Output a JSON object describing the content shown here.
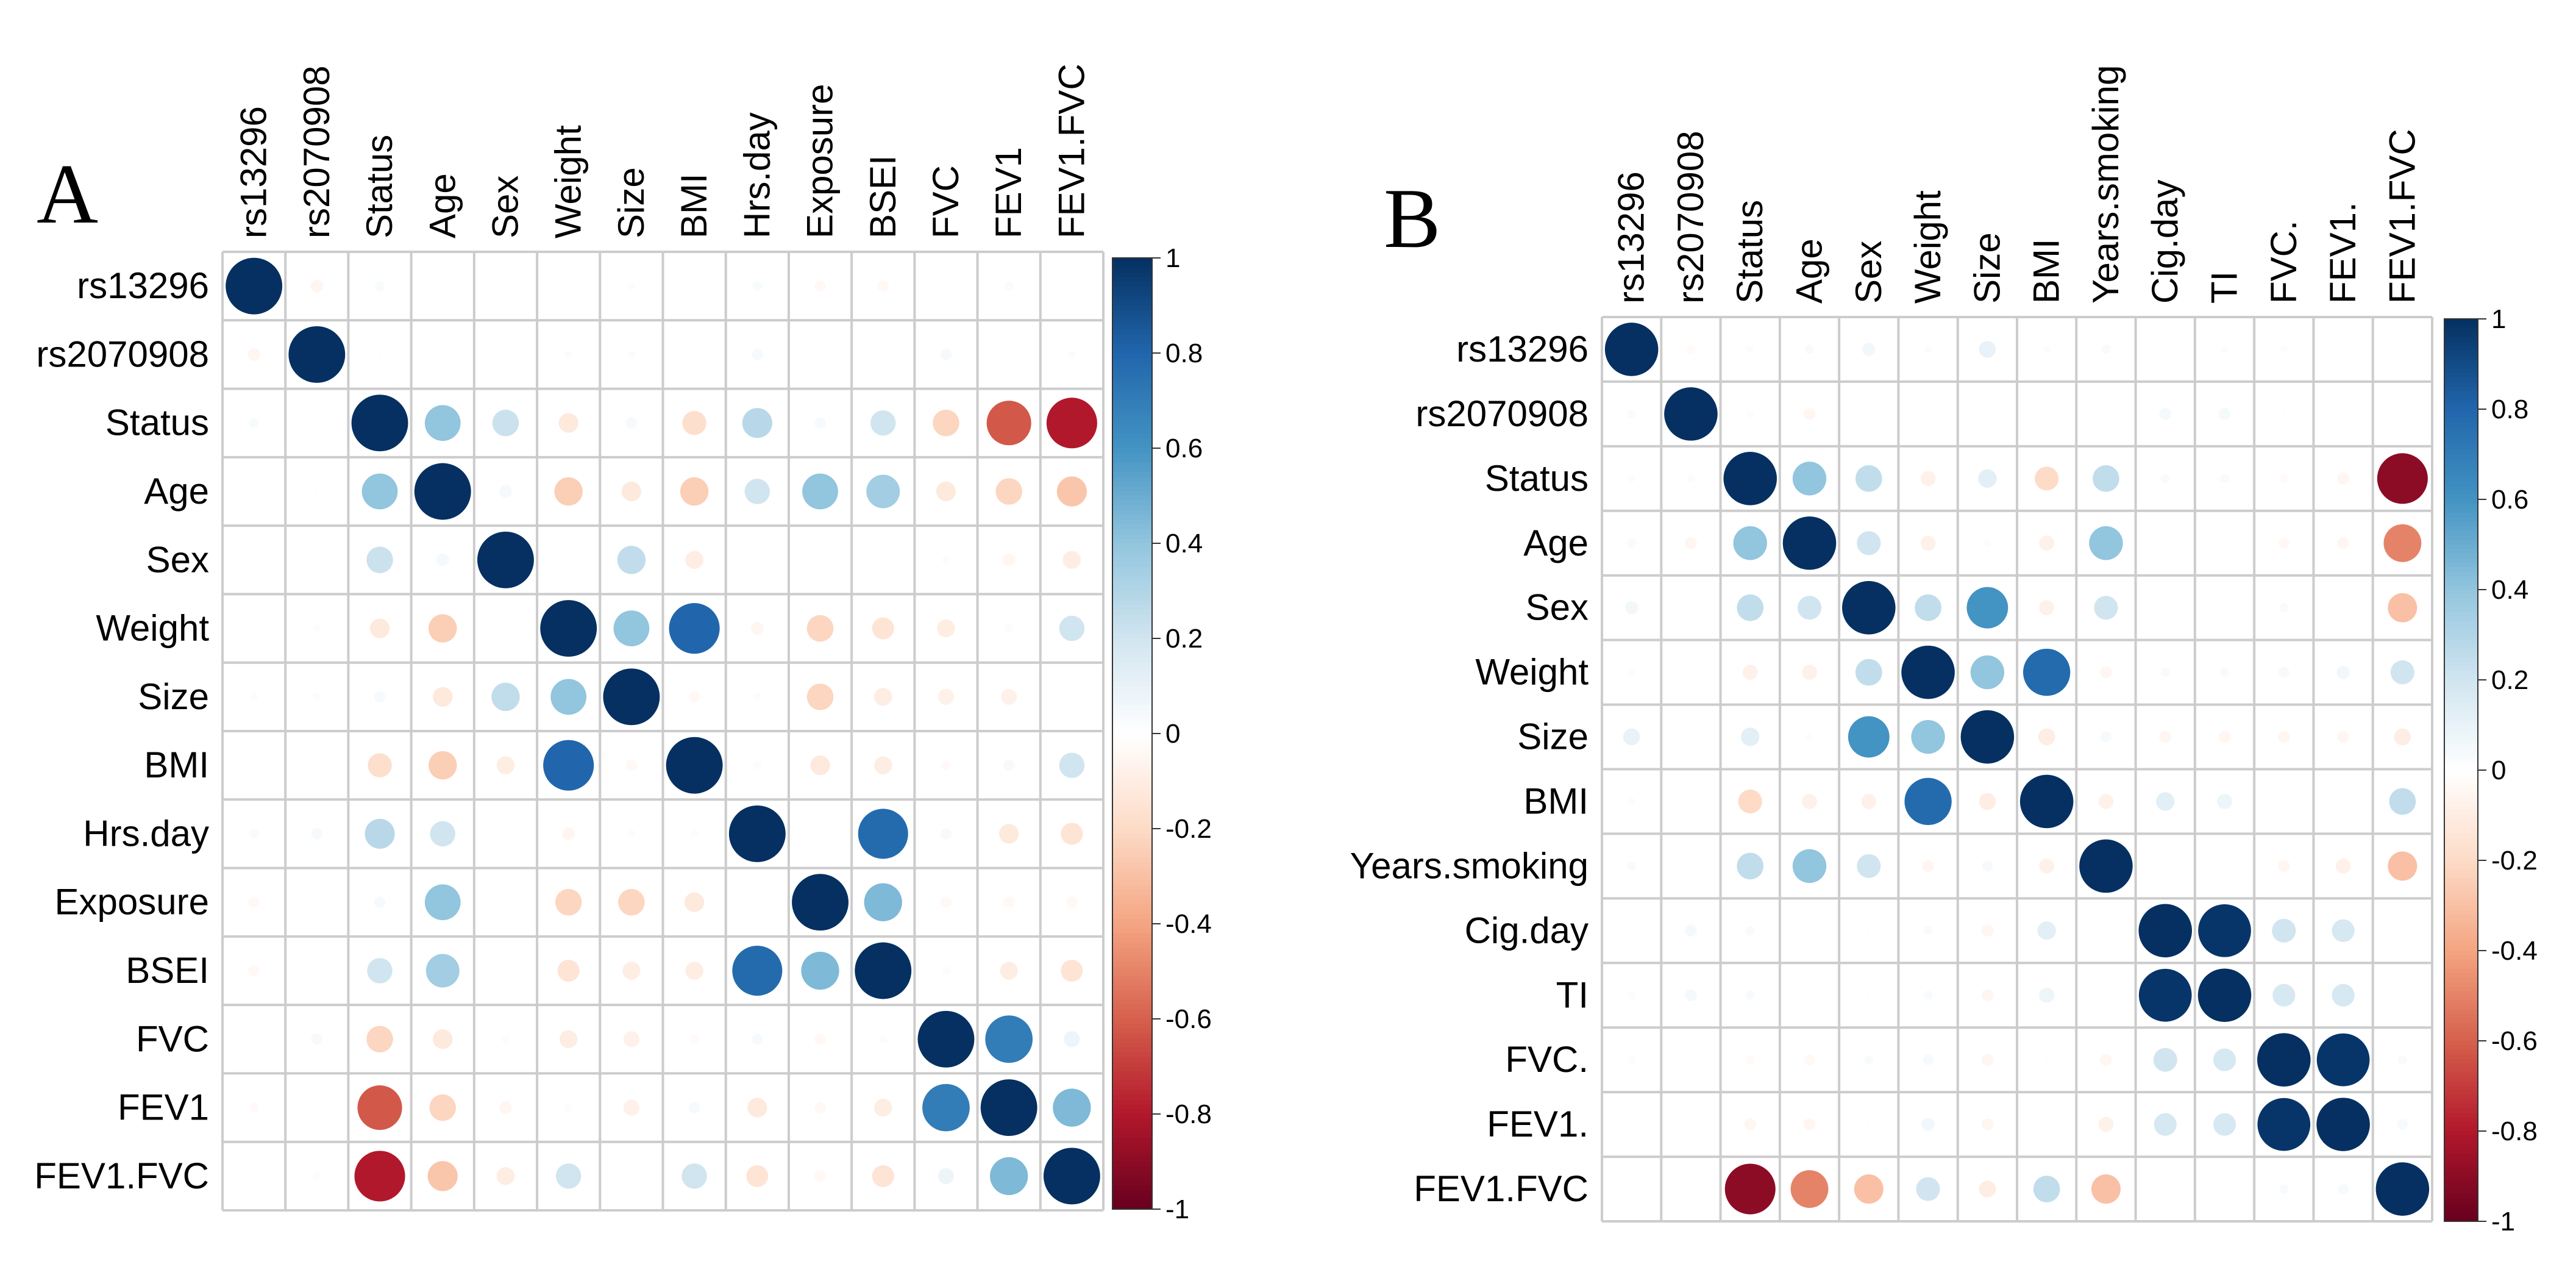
{
  "chart_data": [
    {
      "type": "heatmap",
      "panel_label": "A",
      "variables": [
        "rs13296",
        "rs2070908",
        "Status",
        "Age",
        "Sex",
        "Weight",
        "Size",
        "BMI",
        "Hrs.day",
        "Exposure",
        "BSEI",
        "FVC",
        "FEV1",
        "FEV1.FVC"
      ],
      "colorbar_ticks": [
        "1",
        "0.8",
        "0.6",
        "0.4",
        "0.2",
        "0",
        "-0.2",
        "-0.4",
        "-0.6",
        "-0.8",
        "-1"
      ],
      "value_range": [
        -1,
        1
      ],
      "matrix": [
        [
          1.0,
          -0.05,
          0.03,
          0.0,
          0.01,
          0.01,
          0.02,
          0.0,
          0.03,
          -0.04,
          -0.04,
          0.01,
          -0.03,
          0.01
        ],
        [
          -0.05,
          1.0,
          0.01,
          0.01,
          0.01,
          0.02,
          0.02,
          0.01,
          0.04,
          0.01,
          0.01,
          0.04,
          0.01,
          -0.02
        ],
        [
          0.03,
          0.01,
          1.0,
          0.4,
          0.22,
          -0.12,
          0.04,
          -0.18,
          0.28,
          0.04,
          0.2,
          -0.22,
          -0.62,
          -0.8
        ],
        [
          0.0,
          0.01,
          0.4,
          1.0,
          0.05,
          -0.25,
          -0.12,
          -0.25,
          0.2,
          0.4,
          0.35,
          -0.12,
          -0.22,
          -0.28
        ],
        [
          0.01,
          0.01,
          0.22,
          0.05,
          1.0,
          0.01,
          0.25,
          -0.1,
          0.01,
          0.01,
          0.01,
          0.02,
          -0.05,
          -0.1
        ],
        [
          0.01,
          0.02,
          -0.12,
          -0.25,
          0.01,
          1.0,
          0.4,
          0.8,
          -0.05,
          -0.22,
          -0.15,
          -0.1,
          -0.02,
          0.2
        ],
        [
          0.02,
          0.02,
          0.04,
          -0.12,
          0.25,
          0.4,
          1.0,
          -0.04,
          0.02,
          -0.22,
          -0.1,
          -0.08,
          -0.08,
          0.01
        ],
        [
          0.0,
          0.01,
          -0.18,
          -0.25,
          -0.1,
          0.8,
          -0.04,
          1.0,
          -0.02,
          -0.12,
          -0.1,
          -0.03,
          0.04,
          0.2
        ],
        [
          0.03,
          0.04,
          0.28,
          0.2,
          0.01,
          -0.05,
          0.02,
          -0.02,
          1.0,
          0.0,
          0.78,
          0.04,
          -0.12,
          -0.15
        ],
        [
          -0.04,
          0.01,
          0.04,
          0.4,
          0.01,
          -0.22,
          -0.22,
          -0.12,
          0.0,
          1.0,
          0.45,
          -0.04,
          -0.04,
          -0.04
        ],
        [
          -0.04,
          0.01,
          0.2,
          0.35,
          0.01,
          -0.15,
          -0.1,
          -0.1,
          0.78,
          0.45,
          1.0,
          0.02,
          -0.1,
          -0.15
        ],
        [
          0.01,
          0.04,
          -0.22,
          -0.12,
          0.02,
          -0.1,
          -0.08,
          -0.03,
          0.04,
          -0.04,
          0.02,
          1.0,
          0.7,
          0.08
        ],
        [
          -0.03,
          0.01,
          -0.62,
          -0.22,
          -0.05,
          -0.02,
          -0.08,
          0.04,
          -0.12,
          -0.04,
          -0.1,
          0.7,
          1.0,
          0.45
        ],
        [
          0.01,
          -0.02,
          -0.8,
          -0.28,
          -0.1,
          0.2,
          0.01,
          0.2,
          -0.15,
          -0.04,
          -0.15,
          0.08,
          0.45,
          1.0
        ]
      ]
    },
    {
      "type": "heatmap",
      "panel_label": "B",
      "variables": [
        "rs13296",
        "rs2070908",
        "Status",
        "Age",
        "Sex",
        "Weight",
        "Size",
        "BMI",
        "Years.smoking",
        "Cig.day",
        "TI",
        "FVC.",
        "FEV1.",
        "FEV1.FVC"
      ],
      "colorbar_ticks": [
        "1",
        "0.8",
        "0.6",
        "0.4",
        "0.2",
        "0",
        "-0.2",
        "-0.4",
        "-0.6",
        "-0.8",
        "-1"
      ],
      "value_range": [
        -1,
        1
      ],
      "matrix": [
        [
          1.0,
          -0.03,
          0.02,
          0.03,
          0.06,
          0.02,
          0.1,
          0.02,
          0.03,
          0.01,
          0.02,
          0.02,
          0.01,
          0.01
        ],
        [
          -0.03,
          1.0,
          0.02,
          -0.05,
          0.01,
          0.01,
          0.01,
          0.01,
          0.01,
          0.05,
          0.05,
          0.01,
          0.01,
          0.01
        ],
        [
          0.02,
          0.02,
          1.0,
          0.4,
          0.25,
          -0.08,
          0.12,
          -0.2,
          0.25,
          0.03,
          0.03,
          -0.03,
          -0.05,
          -0.9
        ],
        [
          0.03,
          -0.05,
          0.4,
          1.0,
          0.2,
          -0.08,
          0.02,
          -0.08,
          0.4,
          0.01,
          0.01,
          -0.04,
          -0.05,
          -0.5
        ],
        [
          0.06,
          0.01,
          0.25,
          0.2,
          1.0,
          0.25,
          0.6,
          -0.08,
          0.2,
          0.01,
          0.01,
          0.03,
          0.01,
          -0.3
        ],
        [
          0.02,
          0.01,
          -0.08,
          -0.08,
          0.25,
          1.0,
          0.4,
          0.78,
          -0.05,
          0.03,
          0.03,
          0.04,
          0.06,
          0.2
        ],
        [
          0.1,
          0.01,
          0.12,
          0.02,
          0.6,
          0.4,
          1.0,
          -0.1,
          0.04,
          -0.05,
          -0.05,
          -0.05,
          -0.05,
          -0.1
        ],
        [
          0.02,
          0.01,
          -0.2,
          -0.08,
          -0.08,
          0.78,
          -0.1,
          1.0,
          -0.08,
          0.12,
          0.08,
          0.01,
          0.01,
          0.25
        ],
        [
          0.03,
          0.01,
          0.25,
          0.4,
          0.2,
          -0.05,
          0.04,
          -0.08,
          1.0,
          0.01,
          0.01,
          -0.05,
          -0.08,
          -0.3
        ],
        [
          0.01,
          0.05,
          0.03,
          0.01,
          0.01,
          0.03,
          -0.05,
          0.12,
          0.01,
          1.0,
          0.98,
          0.2,
          0.18,
          0.01
        ],
        [
          0.02,
          0.05,
          0.03,
          0.01,
          0.01,
          0.03,
          -0.05,
          0.08,
          0.01,
          0.98,
          1.0,
          0.18,
          0.18,
          0.01
        ],
        [
          0.02,
          0.01,
          -0.03,
          -0.04,
          0.03,
          0.04,
          -0.05,
          0.01,
          -0.05,
          0.2,
          0.18,
          1.0,
          0.98,
          0.03
        ],
        [
          0.01,
          0.01,
          -0.05,
          -0.05,
          0.01,
          0.06,
          -0.05,
          0.01,
          -0.08,
          0.18,
          0.18,
          0.98,
          1.0,
          0.04
        ],
        [
          0.01,
          0.01,
          -0.9,
          -0.5,
          -0.3,
          0.2,
          -0.1,
          0.25,
          -0.3,
          0.01,
          0.01,
          0.03,
          0.04,
          1.0
        ]
      ]
    }
  ]
}
